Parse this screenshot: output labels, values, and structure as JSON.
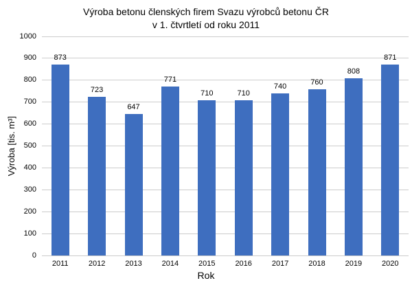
{
  "chart_data": {
    "type": "bar",
    "title": "Výroba betonu členských firem Svazu výrobců betonu ČR",
    "subtitle": "v 1. čtvrtletí od roku 2011",
    "categories": [
      "2011",
      "2012",
      "2013",
      "2014",
      "2015",
      "2016",
      "2017",
      "2018",
      "2019",
      "2020"
    ],
    "values": [
      873,
      723,
      647,
      771,
      710,
      710,
      740,
      760,
      808,
      871
    ],
    "xlabel": "Rok",
    "ylabel": "Výroba [tis. m³]",
    "ylim": [
      0,
      1000
    ],
    "ytick_interval": 100,
    "yticks": [
      0,
      100,
      200,
      300,
      400,
      500,
      600,
      700,
      800,
      900,
      1000
    ],
    "grid": true,
    "legend": "none",
    "value_labels_shown": true,
    "colors": {
      "bar": "#3e6ebf",
      "gridline": "#cccccc",
      "text": "#000000",
      "background": "#ffffff"
    }
  }
}
